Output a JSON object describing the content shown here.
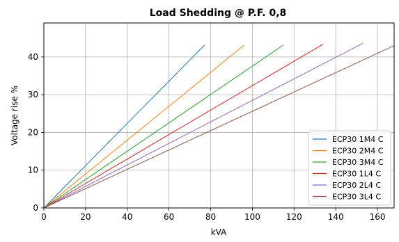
{
  "chart_data": {
    "type": "line",
    "title": "Load Shedding @ P.F. 0,8",
    "xlabel": "kVA",
    "ylabel": "Voltage rise %",
    "xlim": [
      0,
      168
    ],
    "ylim": [
      0,
      49
    ],
    "xticks": [
      0,
      20,
      40,
      60,
      80,
      100,
      120,
      140,
      160
    ],
    "yticks": [
      0,
      10,
      20,
      30,
      40
    ],
    "grid": true,
    "legend_position": "lower-right",
    "series": [
      {
        "name": "ECP30 1M4 C",
        "color": "#1f77b4",
        "x": [
          0,
          77
        ],
        "y": [
          0,
          43.1
        ]
      },
      {
        "name": "ECP30 2M4 C",
        "color": "#ff7f0e",
        "x": [
          0,
          96
        ],
        "y": [
          0,
          43.1
        ]
      },
      {
        "name": "ECP30 3M4 C",
        "color": "#2ca02c",
        "x": [
          0,
          115
        ],
        "y": [
          0,
          43.2
        ]
      },
      {
        "name": "ECP30 1L4 C",
        "color": "#d62728",
        "x": [
          0,
          134
        ],
        "y": [
          0,
          43.4
        ]
      },
      {
        "name": "ECP30 2L4 C",
        "color": "#9467bd",
        "x": [
          0,
          153
        ],
        "y": [
          0,
          43.6
        ]
      },
      {
        "name": "ECP30 3L4 C",
        "color": "#8c564b",
        "x": [
          0,
          168
        ],
        "y": [
          0,
          43.0
        ]
      }
    ]
  }
}
